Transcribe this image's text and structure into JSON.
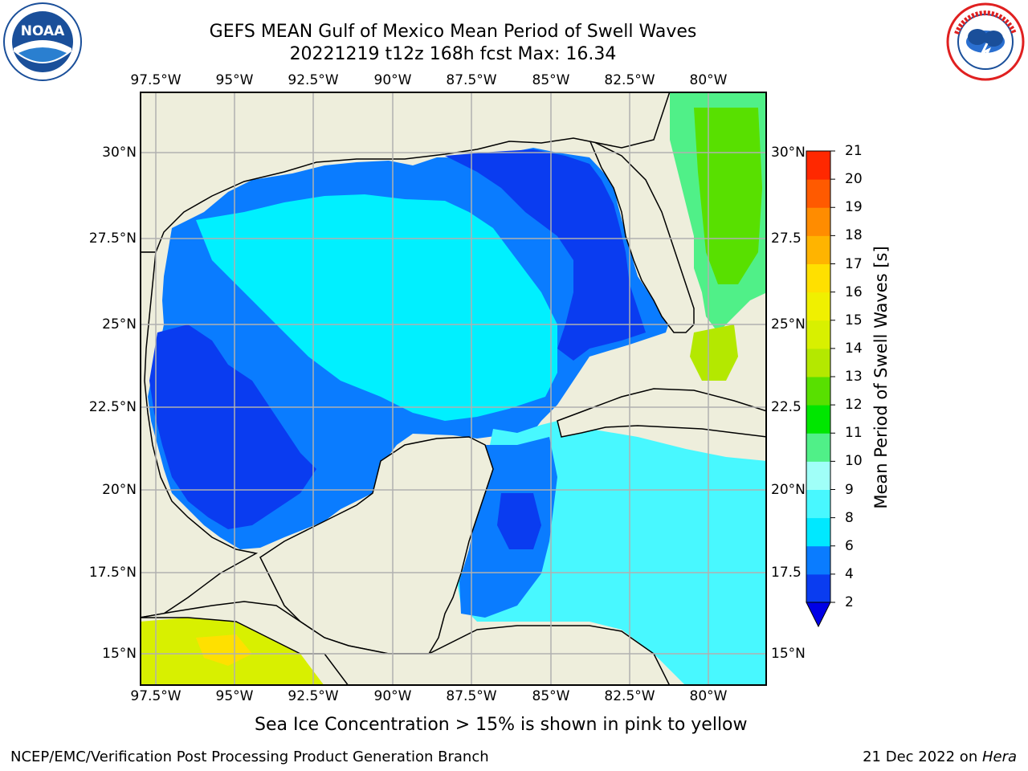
{
  "title_line1": "GEFS MEAN Gulf of Mexico Mean Period of Swell Waves",
  "title_line2": "20221219 t12z 168h fcst   Max: 16.34",
  "logos": {
    "left": {
      "text": "NOAA",
      "ring_text": "NATIONAL OCEANIC AND ATMOSPHERIC ADMINISTRATION · U.S. DEPARTMENT OF COMMERCE",
      "color": "#1a4f9a"
    },
    "right": {
      "text": "NATIONAL WEATHER SERVICE",
      "color": "#e02020"
    }
  },
  "map": {
    "lon_ticks": [
      "97.5°W",
      "95°W",
      "92.5°W",
      "90°W",
      "87.5°W",
      "85°W",
      "82.5°W",
      "80°W"
    ],
    "lat_ticks_left": [
      "30°N",
      "27.5°N",
      "25°N",
      "22.5°N",
      "20°N",
      "17.5°N",
      "15°N"
    ],
    "lat_ticks_right": [
      "30°N",
      "27.5",
      "25°N",
      "22.5",
      "20°N",
      "17.5",
      "15°N"
    ],
    "extent": {
      "lon": [
        -98,
        -78
      ],
      "lat": [
        14,
        32
      ]
    },
    "land_color": "#eeeedc",
    "grid_color": "#b0b0b0"
  },
  "colorbar": {
    "label": "Mean Period of Swell Waves [s]",
    "tick_labels": [
      "2",
      "4",
      "6",
      "8",
      "9",
      "10",
      "11",
      "12",
      "13",
      "14",
      "15",
      "16",
      "17",
      "18",
      "19",
      "20",
      "21"
    ],
    "colors": [
      "#0a3cf0",
      "#0a7cff",
      "#00e8ff",
      "#48f8ff",
      "#a0fff8",
      "#50f088",
      "#00e600",
      "#58e000",
      "#b4e800",
      "#d8f000",
      "#f0f000",
      "#ffe000",
      "#ffb400",
      "#ff8c00",
      "#ff5a00",
      "#ff2800",
      "#ff0000"
    ],
    "extend_min_color": "#0000e6"
  },
  "subtitle": "Sea Ice Concentration > 15% is shown in pink to yellow",
  "footer_left": "NCEP/EMC/Verification Post Processing Product Generation Branch",
  "footer_right_prefix": "21 Dec 2022 on ",
  "footer_right_host": "Hera"
}
